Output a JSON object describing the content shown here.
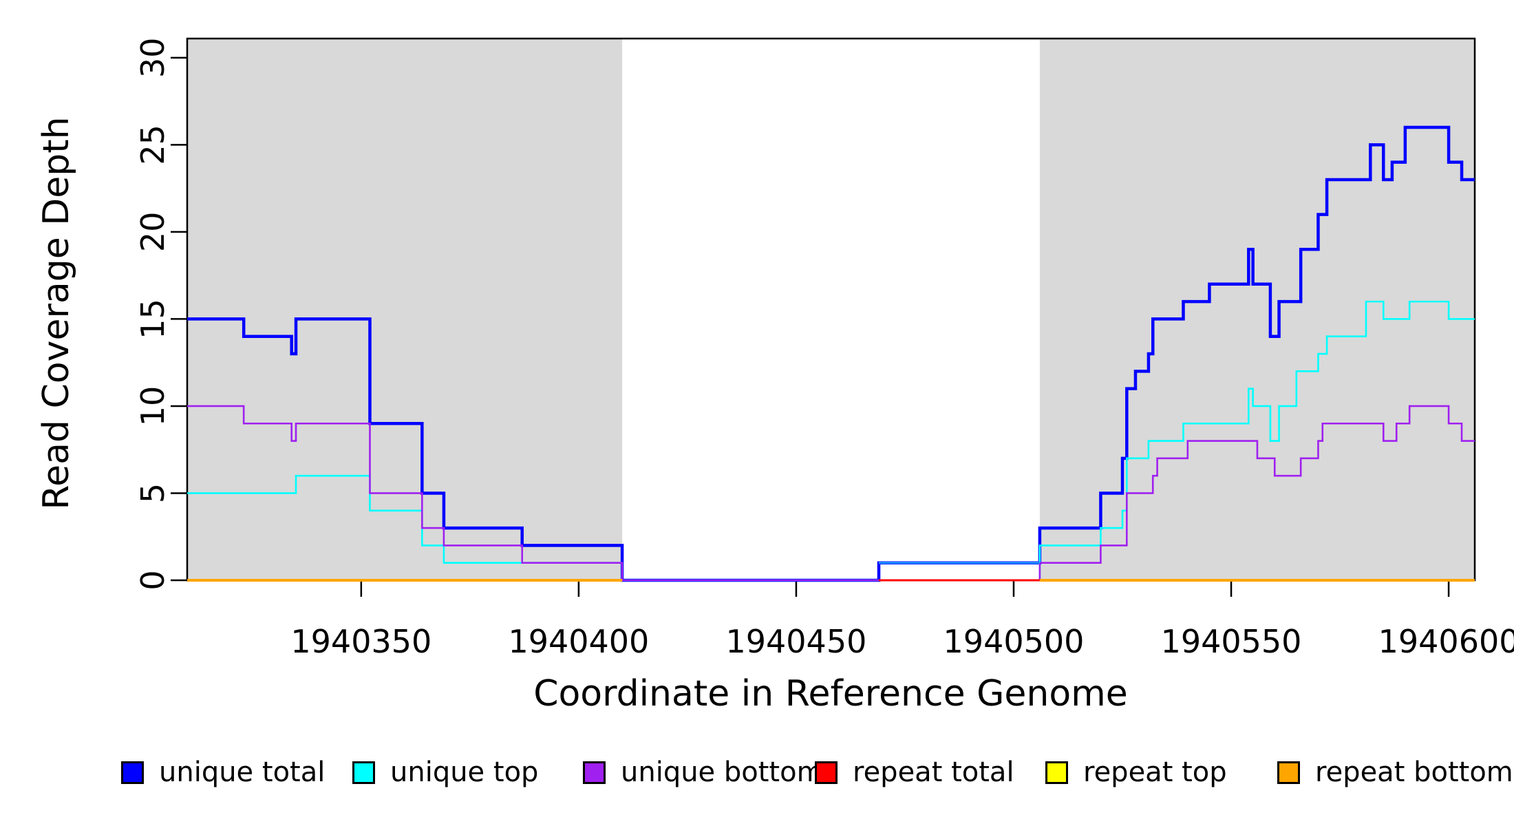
{
  "chart_data": {
    "type": "line",
    "subtype": "step-coverage",
    "title": "",
    "xlabel": "Coordinate in Reference Genome",
    "ylabel": "Read Coverage Depth",
    "xlim": [
      1940310,
      1940606
    ],
    "ylim": [
      0,
      31.1
    ],
    "grid": "off",
    "legend_position": "bottom",
    "background_color": "#ffffff",
    "shaded_region_color": "#d9d9d9",
    "x_ticks": [
      {
        "value": 1940350,
        "label": "1940350"
      },
      {
        "value": 1940400,
        "label": "1940400"
      },
      {
        "value": 1940450,
        "label": "1940450"
      },
      {
        "value": 1940500,
        "label": "1940500"
      },
      {
        "value": 1940550,
        "label": "1940550"
      },
      {
        "value": 1940600,
        "label": "1940600"
      }
    ],
    "y_ticks": [
      {
        "value": 0,
        "label": "0"
      },
      {
        "value": 5,
        "label": "5"
      },
      {
        "value": 10,
        "label": "10"
      },
      {
        "value": 15,
        "label": "15"
      },
      {
        "value": 20,
        "label": "20"
      },
      {
        "value": 25,
        "label": "25"
      },
      {
        "value": 30,
        "label": "30"
      }
    ],
    "shaded_regions": [
      {
        "name": "left-shaded-region",
        "from": 1940310,
        "to": 1940410
      },
      {
        "name": "right-shaded-region",
        "from": 1940506,
        "to": 1940606
      }
    ],
    "series": [
      {
        "name": "unique-total",
        "label": "unique total",
        "color": "#0000ff",
        "line_width": 4.5,
        "segments": [
          [
            1940310,
            1940323,
            15
          ],
          [
            1940323,
            1940334,
            14
          ],
          [
            1940334,
            1940335,
            13
          ],
          [
            1940335,
            1940352,
            15
          ],
          [
            1940352,
            1940364,
            9
          ],
          [
            1940364,
            1940369,
            5
          ],
          [
            1940369,
            1940387,
            3
          ],
          [
            1940387,
            1940410,
            2
          ],
          [
            1940410,
            1940469,
            0
          ],
          [
            1940469,
            1940506,
            1
          ],
          [
            1940506,
            1940520,
            3
          ],
          [
            1940520,
            1940525,
            5
          ],
          [
            1940525,
            1940526,
            7
          ],
          [
            1940526,
            1940528,
            11
          ],
          [
            1940528,
            1940531,
            12
          ],
          [
            1940531,
            1940532,
            13
          ],
          [
            1940532,
            1940539,
            15
          ],
          [
            1940539,
            1940545,
            16
          ],
          [
            1940545,
            1940554,
            17
          ],
          [
            1940554,
            1940555,
            19
          ],
          [
            1940555,
            1940559,
            17
          ],
          [
            1940559,
            1940561,
            14
          ],
          [
            1940561,
            1940566,
            16
          ],
          [
            1940566,
            1940570,
            19
          ],
          [
            1940570,
            1940572,
            21
          ],
          [
            1940572,
            1940582,
            23
          ],
          [
            1940582,
            1940585,
            25
          ],
          [
            1940585,
            1940587,
            23
          ],
          [
            1940587,
            1940590,
            24
          ],
          [
            1940590,
            1940600,
            26
          ],
          [
            1940600,
            1940603,
            24
          ],
          [
            1940603,
            1940606,
            23
          ]
        ]
      },
      {
        "name": "unique-top",
        "label": "unique top",
        "color": "#00ffff",
        "line_width": 2.6,
        "segments": [
          [
            1940310,
            1940335,
            5
          ],
          [
            1940335,
            1940352,
            6
          ],
          [
            1940352,
            1940364,
            4
          ],
          [
            1940364,
            1940369,
            2
          ],
          [
            1940369,
            1940410,
            1
          ],
          [
            1940410,
            1940506,
            0
          ],
          [
            1940506,
            1940520,
            2
          ],
          [
            1940520,
            1940525,
            3
          ],
          [
            1940525,
            1940526,
            4
          ],
          [
            1940526,
            1940531,
            7
          ],
          [
            1940531,
            1940539,
            8
          ],
          [
            1940539,
            1940554,
            9
          ],
          [
            1940554,
            1940555,
            11
          ],
          [
            1940555,
            1940559,
            10
          ],
          [
            1940559,
            1940561,
            8
          ],
          [
            1940561,
            1940565,
            10
          ],
          [
            1940565,
            1940570,
            12
          ],
          [
            1940570,
            1940572,
            13
          ],
          [
            1940572,
            1940581,
            14
          ],
          [
            1940581,
            1940585,
            16
          ],
          [
            1940585,
            1940591,
            15
          ],
          [
            1940591,
            1940600,
            16
          ],
          [
            1940600,
            1940606,
            15
          ]
        ]
      },
      {
        "name": "unique-bottom",
        "label": "unique bottom",
        "color": "#a020f0",
        "line_width": 2.6,
        "segments": [
          [
            1940310,
            1940323,
            10
          ],
          [
            1940323,
            1940334,
            9
          ],
          [
            1940334,
            1940335,
            8
          ],
          [
            1940335,
            1940352,
            9
          ],
          [
            1940352,
            1940364,
            5
          ],
          [
            1940364,
            1940369,
            3
          ],
          [
            1940369,
            1940387,
            2
          ],
          [
            1940387,
            1940410,
            1
          ],
          [
            1940410,
            1940506,
            0
          ],
          [
            1940506,
            1940520,
            1
          ],
          [
            1940520,
            1940526,
            2
          ],
          [
            1940526,
            1940532,
            5
          ],
          [
            1940532,
            1940533,
            6
          ],
          [
            1940533,
            1940540,
            7
          ],
          [
            1940540,
            1940556,
            8
          ],
          [
            1940556,
            1940560,
            7
          ],
          [
            1940560,
            1940566,
            6
          ],
          [
            1940566,
            1940570,
            7
          ],
          [
            1940570,
            1940571,
            8
          ],
          [
            1940571,
            1940585,
            9
          ],
          [
            1940585,
            1940588,
            8
          ],
          [
            1940588,
            1940591,
            9
          ],
          [
            1940591,
            1940600,
            10
          ],
          [
            1940600,
            1940603,
            9
          ],
          [
            1940603,
            1940606,
            8
          ]
        ]
      },
      {
        "name": "repeat-total",
        "label": "repeat total",
        "color": "#ff0000",
        "line_width": 3,
        "segments": [
          [
            1940469,
            1940506,
            0
          ]
        ]
      },
      {
        "name": "repeat-top",
        "label": "repeat top",
        "color": "#ffff00",
        "line_width": 2.6,
        "segments": [
          [
            1940310,
            1940410,
            0
          ],
          [
            1940506,
            1940606,
            0
          ]
        ]
      },
      {
        "name": "repeat-bottom",
        "label": "repeat bottom",
        "color": "#ffa500",
        "line_width": 4,
        "segments": [
          [
            1940310,
            1940410,
            0
          ],
          [
            1940506,
            1940606,
            0
          ]
        ]
      }
    ],
    "middle_overlay": {
      "note": "unique total segment at depth 1 renders as lighter blue in gap region",
      "from": 1940469,
      "to": 1940506,
      "value": 1,
      "color": "#1e90ff",
      "line_width": 3
    }
  }
}
